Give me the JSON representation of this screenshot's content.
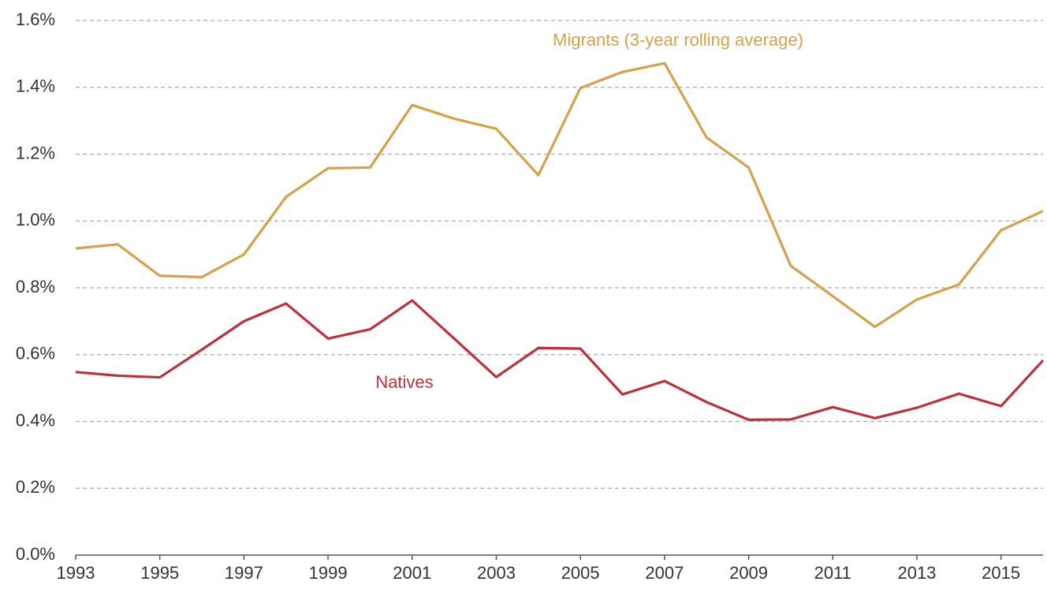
{
  "chart_data": {
    "type": "line",
    "x": [
      1993,
      1994,
      1995,
      1996,
      1997,
      1998,
      1999,
      2000,
      2001,
      2002,
      2003,
      2004,
      2005,
      2006,
      2007,
      2008,
      2009,
      2010,
      2011,
      2012,
      2013,
      2014,
      2015,
      2016
    ],
    "series": [
      {
        "name": "Migrants (3-year rolling average)",
        "color": "#d4a24a",
        "values": [
          0.918,
          0.93,
          0.836,
          0.832,
          0.9,
          1.072,
          1.158,
          1.16,
          1.347,
          1.306,
          1.276,
          1.137,
          1.398,
          1.446,
          1.472,
          1.25,
          1.16,
          0.866,
          0.775,
          0.683,
          0.765,
          0.81,
          0.972,
          1.03
        ]
      },
      {
        "name": "Natives",
        "color": "#c0303c",
        "values": [
          0.548,
          0.537,
          0.532,
          0.615,
          0.7,
          0.753,
          0.648,
          0.676,
          0.762,
          0.648,
          0.533,
          0.62,
          0.618,
          0.481,
          0.521,
          0.458,
          0.405,
          0.406,
          0.443,
          0.41,
          0.441,
          0.483,
          0.446,
          0.583
        ]
      }
    ],
    "xlim": [
      1993,
      2016
    ],
    "xticks": [
      1993,
      1995,
      1997,
      1999,
      2001,
      2003,
      2005,
      2007,
      2009,
      2011,
      2013,
      2015
    ],
    "ylim": [
      0,
      1.6
    ],
    "yticks": [
      {
        "value": 0,
        "label": "0.0%"
      },
      {
        "value": 0.2,
        "label": "0.2%"
      },
      {
        "value": 0.4,
        "label": "0.4%"
      },
      {
        "value": 0.6,
        "label": "0.6%"
      },
      {
        "value": 0.8,
        "label": "0.8%"
      },
      {
        "value": 1.0,
        "label": "1.0%"
      },
      {
        "value": 1.2,
        "label": "1.2%"
      },
      {
        "value": 1.4,
        "label": "1.4%"
      },
      {
        "value": 1.6,
        "label": "1.6%"
      }
    ],
    "grid": true
  }
}
